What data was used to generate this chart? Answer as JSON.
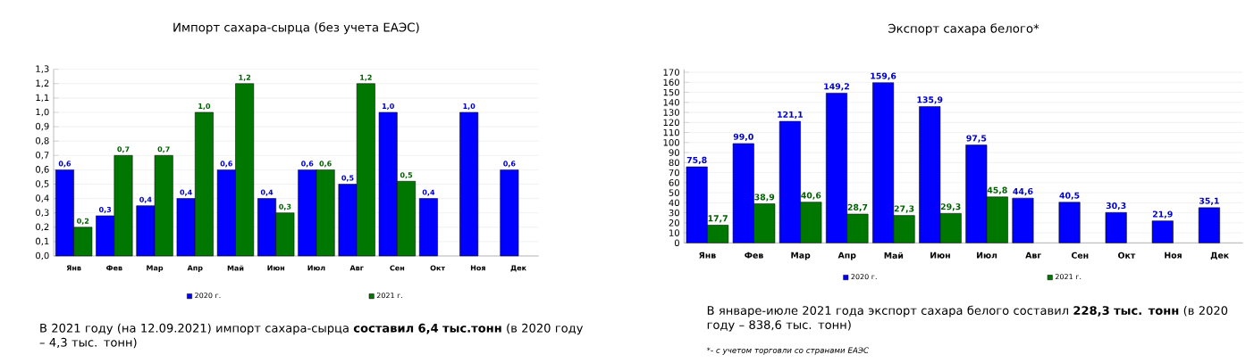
{
  "chart_data": [
    {
      "type": "bar",
      "title": "Импорт сахара-сырца (без учета ЕАЭС)",
      "categories": [
        "Янв",
        "Фев",
        "Мар",
        "Апр",
        "Май",
        "Июн",
        "Июл",
        "Авг",
        "Сен",
        "Окт",
        "Ноя",
        "Дек"
      ],
      "series": [
        {
          "name": "2020 г.",
          "color": "#0000ff",
          "values": [
            0.6,
            0.28,
            0.35,
            0.4,
            0.6,
            0.4,
            0.6,
            0.5,
            1.0,
            0.4,
            1.0,
            0.6
          ],
          "value_labels": [
            "0,6",
            "0,3",
            "0,4",
            "0,4",
            "0,6",
            "0,4",
            "0,6",
            "0,5",
            "1,0",
            "0,4",
            "1,0",
            "0,6"
          ]
        },
        {
          "name": "2021 г.",
          "color": "#007700",
          "values": [
            0.2,
            0.7,
            0.7,
            1.0,
            1.2,
            0.3,
            0.6,
            1.2,
            0.52,
            null,
            null,
            null
          ],
          "value_labels": [
            "0,2",
            "0,7",
            "0,7",
            "1,0",
            "1,2",
            "0,3",
            "0,6",
            "1,2",
            "0,5",
            null,
            null,
            null
          ]
        }
      ],
      "ylim": [
        0,
        1.3
      ],
      "yticks": [
        {
          "value": 0,
          "label": "0,0"
        },
        {
          "value": 0.1,
          "label": "0,1"
        },
        {
          "value": 0.2,
          "label": "0,2"
        },
        {
          "value": 0.3,
          "label": "0,3"
        },
        {
          "value": 0.4,
          "label": "0,4"
        },
        {
          "value": 0.5,
          "label": "0,5"
        },
        {
          "value": 0.6,
          "label": "0,6"
        },
        {
          "value": 0.7,
          "label": "0,7"
        },
        {
          "value": 0.8,
          "label": "0,8"
        },
        {
          "value": 0.9,
          "label": "0,9"
        },
        {
          "value": 1.0,
          "label": "1,0"
        },
        {
          "value": 1.1,
          "label": "1,1"
        },
        {
          "value": 1.2,
          "label": "1,2"
        },
        {
          "value": 1.3,
          "label": "1,3"
        }
      ],
      "grid": "y",
      "legend": "bottom",
      "annotations": [
        "В 2021 году  (на 12.09.2021) импорт сахара-сырца **составил 6,4 тыс.тонн** (в 2020 году – 4,3 тыс. тонн)"
      ]
    },
    {
      "type": "bar",
      "title": "Экспорт сахара белого*",
      "categories": [
        "Янв",
        "Фев",
        "Мар",
        "Апр",
        "Май",
        "Июн",
        "Июл",
        "Авг",
        "Сен",
        "Окт",
        "Ноя",
        "Дек"
      ],
      "series": [
        {
          "name": "2020 г.",
          "color": "#0000ff",
          "values": [
            75.8,
            99.0,
            121.1,
            149.2,
            159.6,
            135.9,
            97.5,
            44.6,
            40.5,
            30.3,
            21.9,
            35.1
          ],
          "value_labels": [
            "75,8",
            "99,0",
            "121,1",
            "149,2",
            "159,6",
            "135,9",
            "97,5",
            "44,6",
            "40,5",
            "30,3",
            "21,9",
            "35,1"
          ]
        },
        {
          "name": "2021 г.",
          "color": "#007700",
          "values": [
            17.7,
            38.9,
            40.6,
            28.7,
            27.3,
            29.3,
            45.8,
            null,
            null,
            null,
            null,
            null
          ],
          "value_labels": [
            "17,7",
            "38,9",
            "40,6",
            "28,7",
            "27,3",
            "29,3",
            "45,8",
            null,
            null,
            null,
            null,
            null
          ]
        }
      ],
      "ylim": [
        0,
        173
      ],
      "yticks": [
        0,
        10,
        20,
        30,
        40,
        50,
        60,
        70,
        80,
        90,
        100,
        110,
        120,
        130,
        140,
        150,
        160,
        170
      ],
      "grid": "y",
      "legend": "bottom",
      "annotations": [
        "В январе-июле 2021 года экспорт сахара белого составил **228,3 тыс. тонн** (в 2020 году – 838,6 тыс. тонн)",
        "*- с учетом торговли со странами ЕАЭС"
      ]
    }
  ]
}
